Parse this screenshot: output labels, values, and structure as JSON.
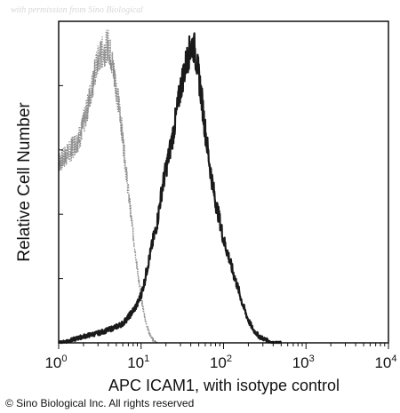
{
  "watermark_text": "with permission from Sino Biological",
  "copyright_text": "© Sino Biological Inc. All rights reserved",
  "chart_data": {
    "type": "histogram",
    "title": "",
    "xlabel": "APC ICAM1, with isotype control",
    "ylabel": "Relative Cell Number",
    "xscale": "log",
    "xlim": [
      1,
      10000
    ],
    "ylim": [
      0,
      100
    ],
    "grid": false,
    "xticks": [
      {
        "value": 1,
        "base": "10",
        "exp": "0"
      },
      {
        "value": 10,
        "base": "10",
        "exp": "1"
      },
      {
        "value": 100,
        "base": "10",
        "exp": "2"
      },
      {
        "value": 1000,
        "base": "10",
        "exp": "3"
      },
      {
        "value": 10000,
        "base": "10",
        "exp": "4"
      }
    ],
    "series": [
      {
        "role": "isotype control",
        "color": "#8c8c8c",
        "style": "dotted",
        "x": [
          1.0,
          1.2,
          1.5,
          1.8,
          2.1,
          2.4,
          2.7,
          3.0,
          3.3,
          3.6,
          4.0,
          4.4,
          4.9,
          5.5,
          6.2,
          7.0,
          8.0,
          9.0,
          10.0,
          11.5,
          13.0,
          14.5,
          16.0
        ],
        "values": [
          56,
          58,
          61,
          64,
          70,
          77,
          83,
          88,
          90,
          91,
          93,
          88,
          81,
          72,
          60,
          47,
          34,
          23,
          14,
          6,
          2,
          0.5,
          0
        ]
      },
      {
        "role": "APC ICAM1",
        "color": "#1a1a1a",
        "style": "solid",
        "x": [
          1.0,
          1.5,
          2.0,
          3.0,
          4.0,
          5.0,
          6.0,
          7.0,
          8.0,
          9.0,
          10.0,
          11.0,
          12.0,
          13.0,
          14.0,
          15.0,
          16.0,
          17.0,
          18.0,
          20.0,
          22.0,
          24.0,
          26.0,
          28.0,
          30.0,
          33.0,
          36.0,
          39.0,
          42.0,
          45.0,
          48.0,
          52.0,
          56.0,
          60.0,
          65.0,
          70.0,
          75.0,
          80.0,
          90.0,
          100.0,
          115.0,
          130.0,
          150.0,
          170.0,
          200.0,
          230.0,
          270.0,
          320.0,
          400.0,
          500.0
        ],
        "values": [
          0,
          1,
          2,
          3,
          4,
          5,
          6,
          8,
          10,
          12,
          15,
          19,
          24,
          28,
          32,
          35,
          39,
          44,
          48,
          54,
          59,
          64,
          69,
          74,
          79,
          84,
          88,
          91,
          93,
          91,
          86,
          80,
          73,
          66,
          59,
          53,
          48,
          44,
          38,
          32,
          27,
          22,
          17,
          12,
          7,
          4,
          2,
          1,
          0,
          0
        ]
      }
    ]
  }
}
